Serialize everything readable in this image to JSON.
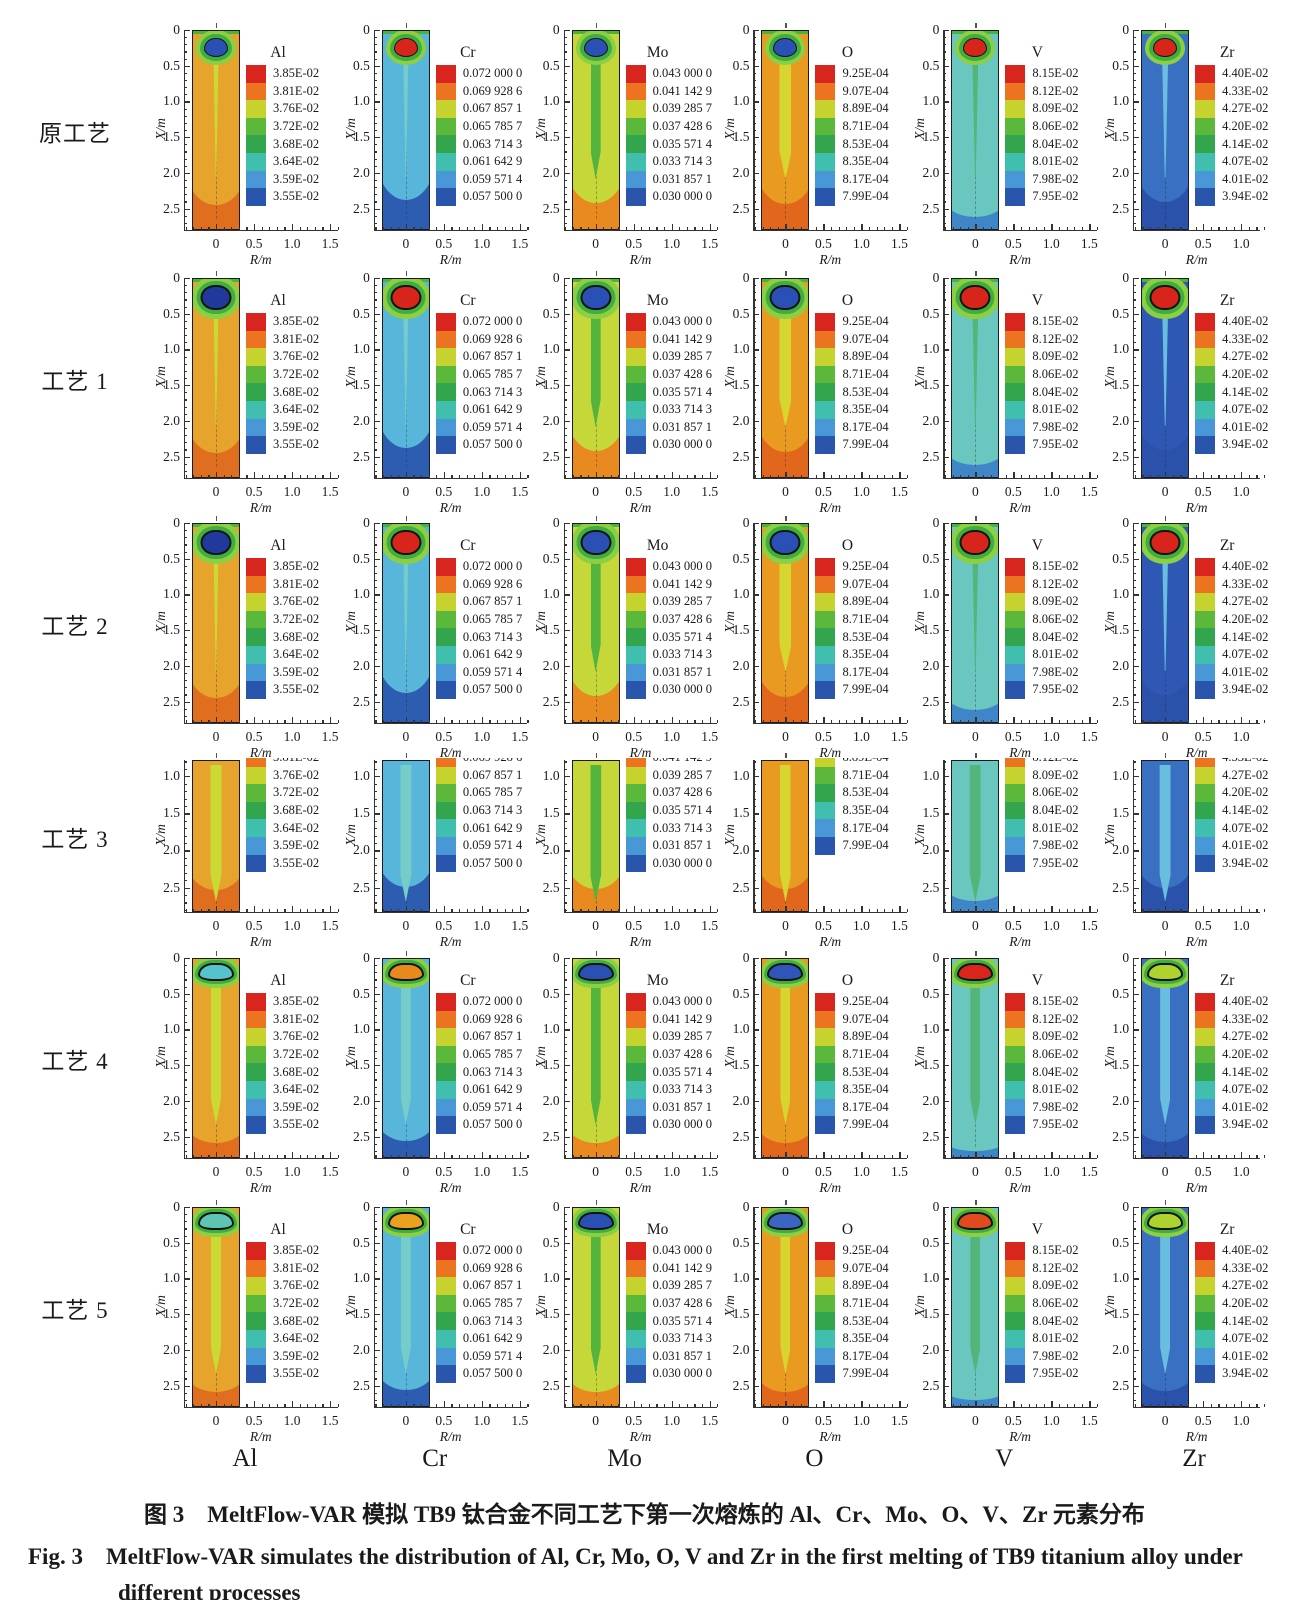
{
  "figure": {
    "row_labels": [
      "原工艺",
      "工艺 1",
      "工艺 2",
      "工艺 3",
      "工艺 4",
      "工艺 5"
    ],
    "column_elements": [
      "Al",
      "Cr",
      "Mo",
      "O",
      "V",
      "Zr"
    ],
    "axis": {
      "y_label": "X/m",
      "x_label": "R/m",
      "y_ticks_full": [
        "0",
        "0.5",
        "1.0",
        "1.5",
        "2.0",
        "2.5"
      ],
      "y_ticks_cropped": [
        "1.0",
        "1.5",
        "2.0",
        "2.5"
      ],
      "x_ticks": [
        "0",
        "0.5",
        "1.0",
        "1.5"
      ],
      "x_ticks_zr": [
        "0",
        "0.5",
        "1.0"
      ]
    },
    "palette": [
      "#d8251d",
      "#ec7420",
      "#c6d32e",
      "#5cb83a",
      "#33a54c",
      "#40bfae",
      "#4897d6",
      "#2a55ac"
    ],
    "colorbars": {
      "Al": {
        "title": "Al",
        "labels": [
          "3.85E-02",
          "3.81E-02",
          "3.76E-02",
          "3.72E-02",
          "3.68E-02",
          "3.64E-02",
          "3.59E-02",
          "3.55E-02"
        ]
      },
      "Cr": {
        "title": "Cr",
        "labels": [
          "0.072 000 0",
          "0.069 928 6",
          "0.067 857 1",
          "0.065 785 7",
          "0.063 714 3",
          "0.061 642 9",
          "0.059 571 4",
          "0.057 500 0"
        ]
      },
      "Mo": {
        "title": "Mo",
        "labels": [
          "0.043 000 0",
          "0.041 142 9",
          "0.039 285 7",
          "0.037 428 6",
          "0.035 571 4",
          "0.033 714 3",
          "0.031 857 1",
          "0.030 000 0"
        ]
      },
      "O": {
        "title": "O",
        "labels": [
          "9.25E-04",
          "9.07E-04",
          "8.89E-04",
          "8.71E-04",
          "8.53E-04",
          "8.35E-04",
          "8.17E-04",
          "7.99E-04"
        ]
      },
      "V": {
        "title": "V",
        "labels": [
          "8.15E-02",
          "8.12E-02",
          "8.09E-02",
          "8.06E-02",
          "8.04E-02",
          "8.01E-02",
          "7.98E-02",
          "7.95E-02"
        ]
      },
      "Zr": {
        "title": "Zr",
        "labels": [
          "4.40E-02",
          "4.33E-02",
          "4.27E-02",
          "4.20E-02",
          "4.14E-02",
          "4.07E-02",
          "4.01E-02",
          "3.94E-02"
        ]
      }
    },
    "cropped_label_start": {
      "Al": 1,
      "Cr": 1,
      "Mo": 1,
      "O": 2,
      "V": 1,
      "Zr": 1
    },
    "columns": [
      {
        "element": "Al",
        "body": "#e6a42c",
        "bottom": "#df6f1e",
        "streak": "#cbd934"
      },
      {
        "element": "Cr",
        "body": "#57b6d9",
        "bottom": "#2d5db0",
        "streak": "#75ccc8"
      },
      {
        "element": "Mo",
        "body": "#c5d739",
        "bottom": "#e98a20",
        "streak": "#54b43d"
      },
      {
        "element": "O",
        "body": "#e99a20",
        "bottom": "#e1671c",
        "streak": "#d7d52f"
      },
      {
        "element": "V",
        "body": "#69c7bf",
        "bottom": "#3e86c8",
        "streak": "#53b57a"
      },
      {
        "element": "Zr",
        "body": "#3a70c2",
        "bottom": "#2a52aa",
        "streak": "#69bedf"
      }
    ],
    "rows": [
      {
        "label": "原工艺",
        "type": "small-blob",
        "cores": {
          "Al": "#2b50b5",
          "Cr": "#d8251c",
          "Mo": "#2b50b5",
          "O": "#2b50b5",
          "V": "#d8251c",
          "Zr": "#d8251c"
        }
      },
      {
        "label": "工艺 1",
        "type": "big-blob",
        "cores": {
          "Al": "#20399b",
          "Cr": "#d8251c",
          "Mo": "#2b50b5",
          "O": "#2b50b5",
          "V": "#d8251c",
          "Zr": "#d8251c"
        },
        "body_overrides": {
          "Zr": "#2f58b4"
        }
      },
      {
        "label": "工艺 2",
        "type": "big-blob",
        "cores": {
          "Al": "#20399b",
          "Cr": "#d8251c",
          "Mo": "#2b50b5",
          "O": "#2b50b5",
          "V": "#d8251c",
          "Zr": "#d8251c"
        },
        "body_overrides": {
          "Zr": "#2f58b4"
        }
      },
      {
        "label": "工艺 3",
        "type": "cropped",
        "cores": {}
      },
      {
        "label": "工艺 4",
        "type": "flat-blob",
        "cores": {
          "Al": "#54c3cb",
          "Cr": "#e8891e",
          "Mo": "#2b50b5",
          "O": "#2f55b8",
          "V": "#d8261c",
          "Zr": "#aed32f"
        }
      },
      {
        "label": "工艺 5",
        "type": "flat-blob",
        "cores": {
          "Al": "#5fc4b4",
          "Cr": "#e8a21e",
          "Mo": "#2b50b5",
          "O": "#3a66c2",
          "V": "#e04a1c",
          "Zr": "#aed32f"
        }
      }
    ]
  },
  "caption": {
    "zh": "图 3　MeltFlow-VAR 模拟 TB9 钛合金不同工艺下第一次熔炼的 Al、Cr、Mo、O、V、Zr 元素分布",
    "en": "Fig. 3　MeltFlow-VAR simulates the distribution of Al, Cr, Mo, O, V and Zr in the first melting of TB9 titanium alloy under different processes"
  },
  "chart_data": [
    {
      "type": "heatmap",
      "panel": "Al",
      "legend_title": "Al",
      "legend_values": [
        "3.85E-02",
        "3.81E-02",
        "3.76E-02",
        "3.72E-02",
        "3.68E-02",
        "3.64E-02",
        "3.59E-02",
        "3.55E-02"
      ],
      "rows": [
        "原工艺",
        "工艺 1",
        "工艺 2",
        "工艺 3",
        "工艺 4",
        "工艺 5"
      ],
      "xlabel": "R/m",
      "ylabel": "X/m",
      "x_ticks": [
        0,
        0.5,
        1.0,
        1.5
      ],
      "y_ticks": [
        0,
        0.5,
        1.0,
        1.5,
        2.0,
        2.5
      ]
    },
    {
      "type": "heatmap",
      "panel": "Cr",
      "legend_title": "Cr",
      "legend_values": [
        "0.072 000 0",
        "0.069 928 6",
        "0.067 857 1",
        "0.065 785 7",
        "0.063 714 3",
        "0.061 642 9",
        "0.059 571 4",
        "0.057 500 0"
      ],
      "rows": [
        "原工艺",
        "工艺 1",
        "工艺 2",
        "工艺 3",
        "工艺 4",
        "工艺 5"
      ],
      "xlabel": "R/m",
      "ylabel": "X/m",
      "x_ticks": [
        0,
        0.5,
        1.0,
        1.5
      ],
      "y_ticks": [
        0,
        0.5,
        1.0,
        1.5,
        2.0,
        2.5
      ]
    },
    {
      "type": "heatmap",
      "panel": "Mo",
      "legend_title": "Mo",
      "legend_values": [
        "0.043 000 0",
        "0.041 142 9",
        "0.039 285 7",
        "0.037 428 6",
        "0.035 571 4",
        "0.033 714 3",
        "0.031 857 1",
        "0.030 000 0"
      ],
      "rows": [
        "原工艺",
        "工艺 1",
        "工艺 2",
        "工艺 3",
        "工艺 4",
        "工艺 5"
      ],
      "xlabel": "R/m",
      "ylabel": "X/m",
      "x_ticks": [
        0,
        0.5,
        1.0,
        1.5
      ],
      "y_ticks": [
        0,
        0.5,
        1.0,
        1.5,
        2.0,
        2.5
      ]
    },
    {
      "type": "heatmap",
      "panel": "O",
      "legend_title": "O",
      "legend_values": [
        "9.25E-04",
        "9.07E-04",
        "8.89E-04",
        "8.71E-04",
        "8.53E-04",
        "8.35E-04",
        "8.17E-04",
        "7.99E-04"
      ],
      "rows": [
        "原工艺",
        "工艺 1",
        "工艺 2",
        "工艺 3",
        "工艺 4",
        "工艺 5"
      ],
      "xlabel": "R/m",
      "ylabel": "X/m",
      "x_ticks": [
        0,
        0.5,
        1.0,
        1.5
      ],
      "y_ticks": [
        0,
        0.5,
        1.0,
        1.5,
        2.0,
        2.5
      ]
    },
    {
      "type": "heatmap",
      "panel": "V",
      "legend_title": "V",
      "legend_values": [
        "8.15E-02",
        "8.12E-02",
        "8.09E-02",
        "8.06E-02",
        "8.04E-02",
        "8.01E-02",
        "7.98E-02",
        "7.95E-02"
      ],
      "rows": [
        "原工艺",
        "工艺 1",
        "工艺 2",
        "工艺 3",
        "工艺 4",
        "工艺 5"
      ],
      "xlabel": "R/m",
      "ylabel": "X/m",
      "x_ticks": [
        0,
        0.5,
        1.0,
        1.5
      ],
      "y_ticks": [
        0,
        0.5,
        1.0,
        1.5,
        2.0,
        2.5
      ]
    },
    {
      "type": "heatmap",
      "panel": "Zr",
      "legend_title": "Zr",
      "legend_values": [
        "4.40E-02",
        "4.33E-02",
        "4.27E-02",
        "4.20E-02",
        "4.14E-02",
        "4.07E-02",
        "4.01E-02",
        "3.94E-02"
      ],
      "rows": [
        "原工艺",
        "工艺 1",
        "工艺 2",
        "工艺 3",
        "工艺 4",
        "工艺 5"
      ],
      "xlabel": "R/m",
      "ylabel": "X/m",
      "x_ticks": [
        0,
        0.5,
        1.0
      ],
      "y_ticks": [
        0,
        0.5,
        1.0,
        1.5,
        2.0,
        2.5
      ]
    }
  ]
}
